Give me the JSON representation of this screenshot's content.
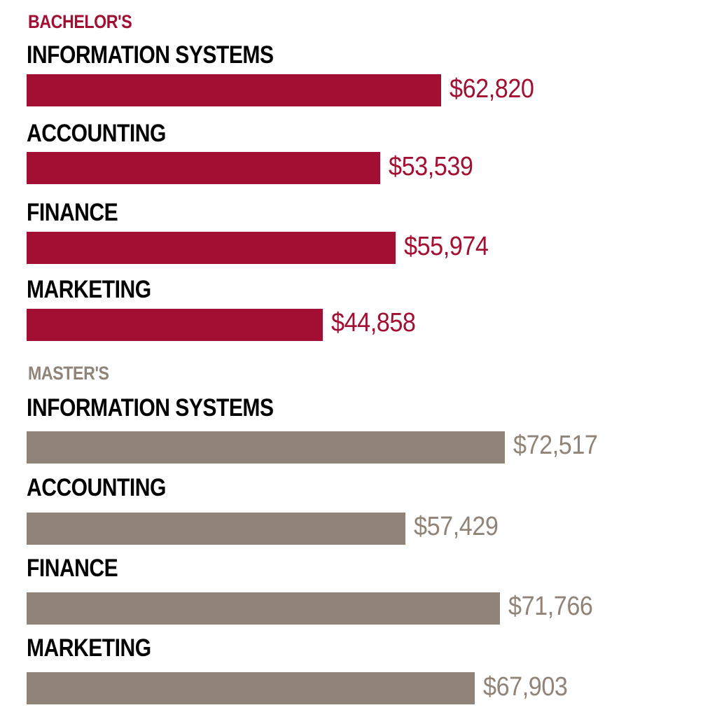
{
  "colors": {
    "bachelors": "#a20f32",
    "masters": "#908479",
    "label": "#000000"
  },
  "chart_data": [
    {
      "type": "bar",
      "orientation": "horizontal",
      "title": "BACHELOR'S",
      "categories": [
        "INFORMATION SYSTEMS",
        "ACCOUNTING",
        "FINANCE",
        "MARKETING"
      ],
      "values": [
        62820,
        53539,
        55974,
        44858
      ],
      "value_labels": [
        "$62,820",
        "$53,539",
        "$55,974",
        "$44,858"
      ],
      "color": "#a20f32",
      "xlim": [
        0,
        85000
      ],
      "grid": false,
      "legend": "none"
    },
    {
      "type": "bar",
      "orientation": "horizontal",
      "title": "MASTER'S",
      "categories": [
        "INFORMATION SYSTEMS",
        "ACCOUNTING",
        "FINANCE",
        "MARKETING"
      ],
      "values": [
        72517,
        57429,
        71766,
        67903
      ],
      "value_labels": [
        "$72,517",
        "$57,429",
        "$71,766",
        "$67,903"
      ],
      "color": "#908479",
      "xlim": [
        0,
        85000
      ],
      "grid": false,
      "legend": "none"
    }
  ]
}
